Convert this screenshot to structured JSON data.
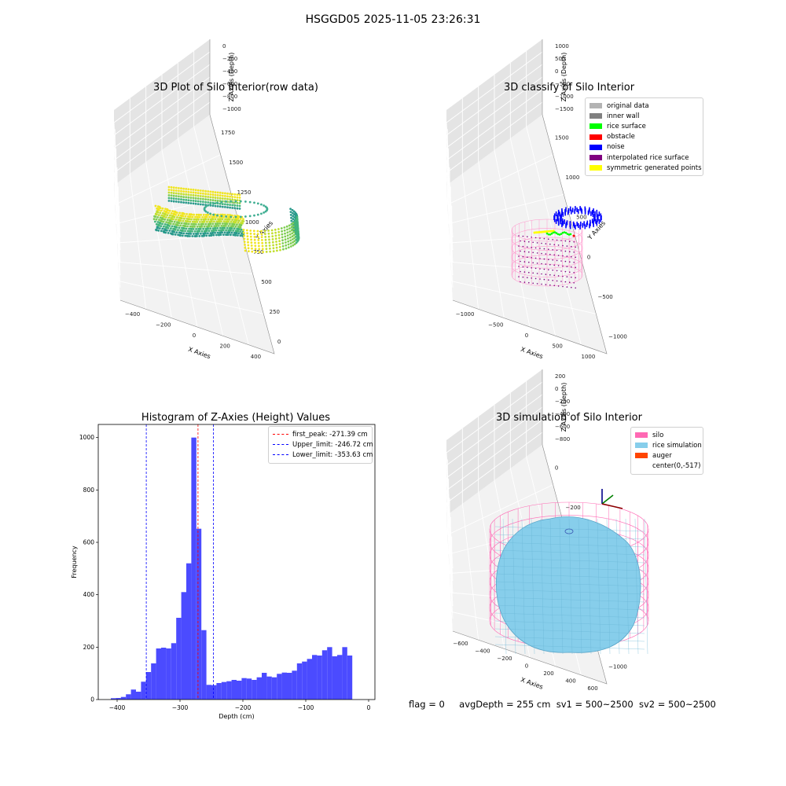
{
  "figure": {
    "suptitle": "HSGGD05 2025-11-05 23:26:31",
    "footer": {
      "flag": "flag = 0",
      "avg_depth": "avgDepth = 255 cm",
      "sv1": "sv1 = 500~2500",
      "sv2": "sv2 = 500~2500"
    }
  },
  "plots": {
    "raw": {
      "title": "3D Plot of Silo Interior(row data)",
      "xlabel": "X Axies",
      "ylabel": "Y Axies",
      "zlabel": "Z Axies (Depth)",
      "xticks": [
        "−400",
        "−200",
        "0",
        "200",
        "400"
      ],
      "yticks": [
        "0",
        "250",
        "500",
        "750",
        "1000",
        "1250",
        "1500",
        "1750"
      ],
      "zticks": [
        "0",
        "−200",
        "−400",
        "−600",
        "−800",
        "−1000"
      ],
      "colormap": [
        "#2a9a8c",
        "#43b57b",
        "#7fcd52",
        "#c2df2f",
        "#f0e51f"
      ]
    },
    "classify": {
      "title": "3D classify of Silo Interior",
      "xlabel": "X Axies",
      "ylabel": "Y Axies",
      "zlabel": "Z Axies (Depth)",
      "xticks": [
        "−1000",
        "−500",
        "0",
        "500",
        "1000"
      ],
      "yticks": [
        "−1000",
        "−500",
        "0",
        "500",
        "1000",
        "1500"
      ],
      "zticks": [
        "1000",
        "500",
        "0",
        "−500",
        "−1000",
        "−1500"
      ],
      "legend": [
        {
          "label": "original data",
          "color": "#b3b3b3"
        },
        {
          "label": "inner wall",
          "color": "#808080"
        },
        {
          "label": "rice surface",
          "color": "#00ff00"
        },
        {
          "label": "obstacle",
          "color": "#ff0000"
        },
        {
          "label": "noise",
          "color": "#0000ff"
        },
        {
          "label": "interpolated rice surface",
          "color": "#800080"
        },
        {
          "label": "symmetric generated points",
          "color": "#ffff00"
        }
      ]
    },
    "histogram": {
      "title": "Histogram of Z-Axies (Height) Values",
      "bar_color": "#4b4bff",
      "legend": [
        {
          "label": "first_peak: -271.39 cm",
          "color": "#ff0000"
        },
        {
          "label": "Upper_limit: -246.72 cm",
          "color": "#0000ff"
        },
        {
          "label": "Lower_limit: -353.63 cm",
          "color": "#0000ff"
        }
      ]
    },
    "simulation": {
      "title": "3D simulation of Silo Interior",
      "xlabel": "X Axies",
      "ylabel": "Y Axies",
      "zlabel": "Z Axies (Depth)",
      "xticks": [
        "−600",
        "−400",
        "−200",
        "0",
        "200",
        "400",
        "600"
      ],
      "yticks": [
        "−1000",
        "−800",
        "−600",
        "−400",
        "−200",
        "0"
      ],
      "zticks": [
        "200",
        "0",
        "−200",
        "−400",
        "−600",
        "−800"
      ],
      "legend": [
        {
          "label": "silo",
          "color": "#ff69b4"
        },
        {
          "label": "rice simulation",
          "color": "#87ceeb"
        },
        {
          "label": "auger",
          "color": "#ff4500"
        },
        {
          "label": "center(0,-517)",
          "color": "#ffffff"
        }
      ]
    }
  },
  "chart_data": [
    {
      "type": "scatter",
      "title": "3D Plot of Silo Interior(row data)",
      "xlabel": "X Axies",
      "ylabel": "Y Axies",
      "zlabel": "Z Axies (Depth)",
      "xlim": [
        -500,
        500
      ],
      "ylim": [
        0,
        1850
      ],
      "zlim": [
        -1100,
        0
      ],
      "color_by": "z",
      "grid": true
    },
    {
      "type": "scatter",
      "title": "3D classify of Silo Interior",
      "xlabel": "X Axies",
      "ylabel": "Y Axies",
      "zlabel": "Z Axies (Depth)",
      "xlim": [
        -1200,
        1200
      ],
      "ylim": [
        -1100,
        1600
      ],
      "zlim": [
        -1700,
        1100
      ],
      "legend_position": "top-right",
      "grid": true
    },
    {
      "type": "bar",
      "title": "Histogram of Z-Axies (Height) Values",
      "xlabel": "Depth (cm)",
      "ylabel": "Frequency",
      "xlim": [
        -430,
        10
      ],
      "ylim": [
        0,
        1050
      ],
      "xticks": [
        -400,
        -300,
        -200,
        -100,
        0
      ],
      "yticks": [
        0,
        200,
        400,
        600,
        800,
        1000
      ],
      "bin_start": -410,
      "bin_width": 8,
      "values": [
        5,
        6,
        10,
        20,
        38,
        30,
        68,
        105,
        138,
        195,
        198,
        195,
        215,
        312,
        410,
        520,
        1000,
        652,
        265,
        56,
        55,
        63,
        67,
        70,
        75,
        72,
        82,
        80,
        75,
        85,
        102,
        88,
        85,
        98,
        103,
        102,
        110,
        138,
        145,
        155,
        170,
        168,
        188,
        200,
        165,
        170,
        200,
        168,
        0
      ],
      "vlines": [
        {
          "label": "first_peak: -271.39 cm",
          "x": -271.39,
          "color": "#ff0000"
        },
        {
          "label": "Upper_limit: -246.72 cm",
          "x": -246.72,
          "color": "#0000ff"
        },
        {
          "label": "Lower_limit: -353.63 cm",
          "x": -353.63,
          "color": "#0000ff"
        }
      ],
      "legend_position": "top-right"
    },
    {
      "type": "other",
      "title": "3D simulation of Silo Interior",
      "xlabel": "X Axies",
      "ylabel": "Y Axies",
      "zlabel": "Z Axies (Depth)",
      "xlim": [
        -650,
        650
      ],
      "ylim": [
        -1100,
        100
      ],
      "zlim": [
        -950,
        300
      ],
      "legend_position": "top-right",
      "grid": true
    }
  ]
}
